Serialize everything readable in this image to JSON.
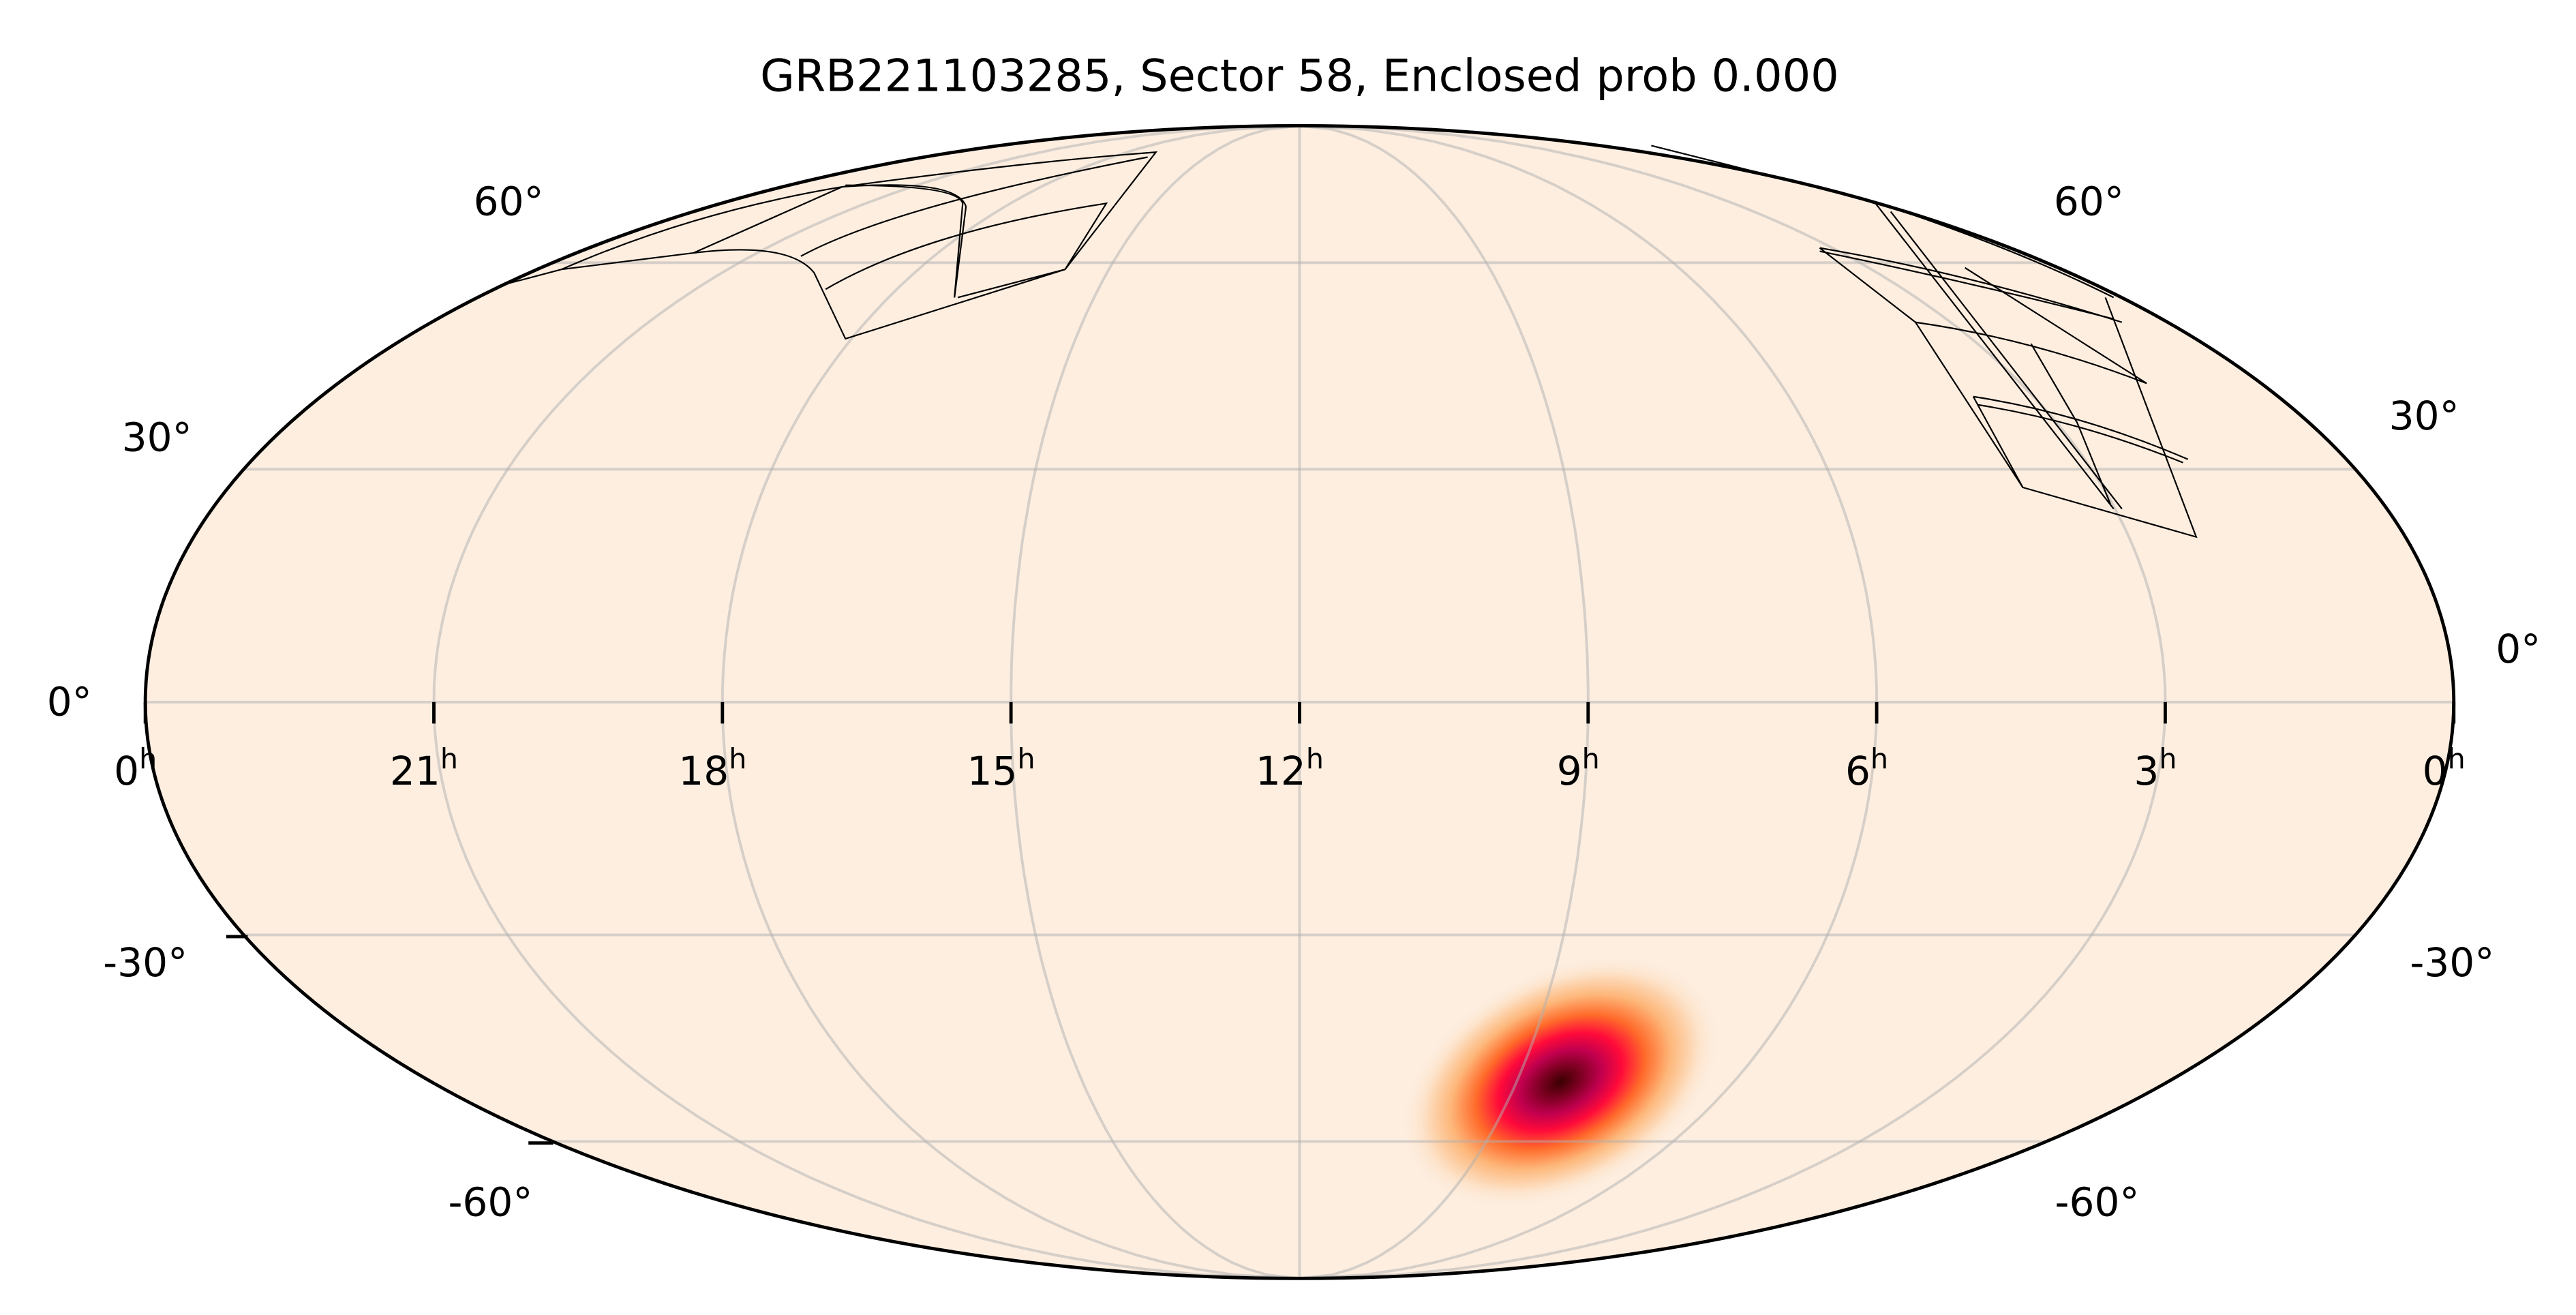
{
  "chart_data": {
    "type": "heatmap",
    "projection": "mollweide",
    "title": "GRB221103285, Sector 58, Enclosed prob 0.000",
    "x_axis": {
      "quantity": "Right Ascension",
      "direction": "decreasing-right",
      "tick_labels": [
        "0",
        "21",
        "18",
        "15",
        "12",
        "9",
        "6",
        "3",
        "0"
      ],
      "tick_values_hours": [
        24,
        21,
        18,
        15,
        12,
        9,
        6,
        3,
        0
      ],
      "tick_suffix": "h"
    },
    "y_axis": {
      "quantity": "Declination",
      "tick_labels_left": [
        "60°",
        "30°",
        "0°",
        "-30°",
        "-60°"
      ],
      "tick_labels_right": [
        "60°",
        "30°",
        "0°",
        "-30°",
        "-60°"
      ],
      "tick_values_deg": [
        60,
        30,
        0,
        -30,
        -60
      ]
    },
    "grid": true,
    "localization": {
      "description": "GRB probability peak",
      "ra_hours": 8.6,
      "dec_deg": -48,
      "colormap": "hot-reverse",
      "colors": [
        "#fdeee0",
        "#fdb77a",
        "#ff6a2a",
        "#ff0a3a",
        "#b3004f",
        "#3a0000"
      ]
    },
    "background_color": "#fdeee0",
    "footprint": "TESS Sector 58 camera CCD outlines",
    "enclosed_probability": 0.0
  }
}
